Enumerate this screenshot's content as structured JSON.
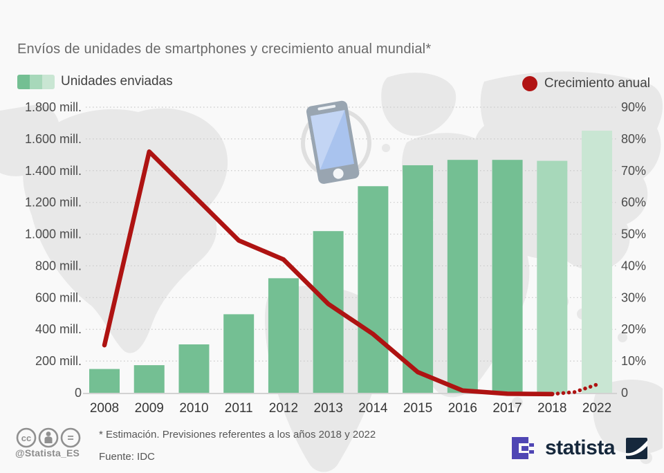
{
  "title": "Envíos de unidades de smartphones y crecimiento anual mundial*",
  "legend": {
    "bars_label": "Unidades enviadas",
    "line_label": "Crecimiento anual",
    "swatch_colors": [
      "#74bf93",
      "#a7d8ba",
      "#c9e6d3"
    ],
    "line_color": "#b11313"
  },
  "chart_data": {
    "type": "combo-bar-line",
    "categories": [
      "2008",
      "2009",
      "2010",
      "2011",
      "2012",
      "2013",
      "2014",
      "2015",
      "2016",
      "2017",
      "2018",
      "2022"
    ],
    "series": [
      {
        "name": "Unidades enviadas",
        "type": "bar",
        "unit": "millones de unidades",
        "values": [
          150,
          174,
          305,
          495,
          722,
          1019,
          1302,
          1434,
          1468,
          1468,
          1462,
          1652
        ],
        "default_color": "#74bf93",
        "colors_by_index": {
          "10": "#a7d8ba",
          "11": "#c9e6d3"
        }
      },
      {
        "name": "Crecimiento anual",
        "type": "line",
        "unit": "%",
        "values": [
          15,
          76,
          62,
          48,
          42,
          28,
          18.5,
          6.5,
          0.7,
          -0.3,
          -0.4,
          2.6
        ],
        "color": "#ae1312",
        "dotted_from_index": 10
      }
    ],
    "left_axis": {
      "max": 1800,
      "labels": [
        "1.800 mill.",
        "1.600 mill.",
        "1.400 mill.",
        "1.200 mill.",
        "1.000 mill.",
        "800 mill.",
        "600 mill.",
        "400 mill.",
        "200 mill.",
        "0"
      ]
    },
    "right_axis": {
      "max": 90,
      "labels": [
        "90%",
        "80%",
        "70%",
        "60%",
        "50%",
        "40%",
        "30%",
        "20%",
        "10%",
        "0"
      ]
    },
    "grid": "dotted-horizontal",
    "legend_position": "top",
    "estimated_years": [
      "2018",
      "2022"
    ]
  },
  "footer": {
    "note": "* Estimación. Previsiones referentes a los años 2018 y 2022",
    "source": "Fuente: IDC",
    "handle": "@Statista_ES",
    "brand": "statista"
  },
  "colors": {
    "background": "#f9f9f9",
    "map": "#e8e8e8",
    "grid": "#c9c9c9",
    "baseline": "#d2d2d2",
    "axis_text": "#4b4b4b",
    "year_text": "#363636",
    "statista_navy": "#16283c",
    "partner_purple": "#4f46b4"
  }
}
